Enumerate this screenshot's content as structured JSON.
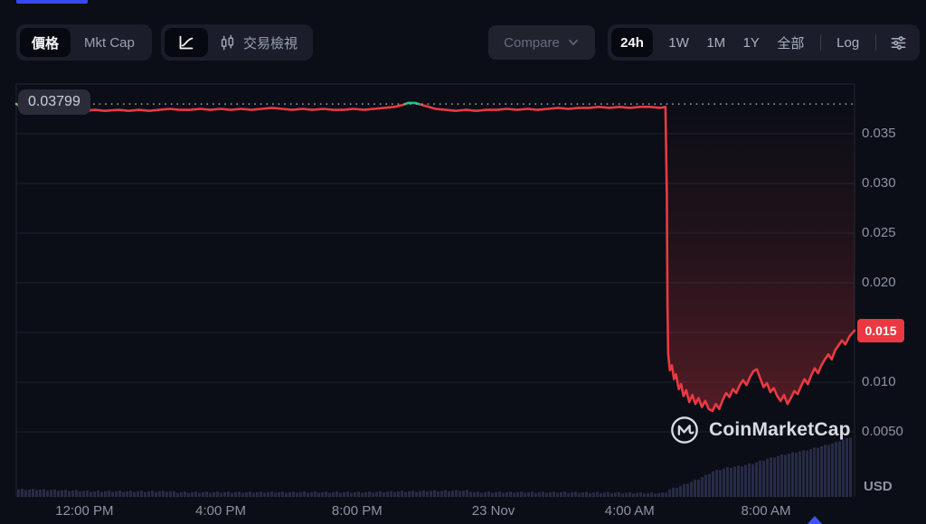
{
  "toolbar": {
    "metric_group": {
      "price_label": "價格",
      "mktcap_label": "Mkt Cap"
    },
    "view_group": {
      "trading_view_label": "交易檢視"
    },
    "compare_label": "Compare",
    "range_group": {
      "r24h": "24h",
      "r1w": "1W",
      "r1m": "1M",
      "r1y": "1Y",
      "all": "全部",
      "log": "Log"
    }
  },
  "chart": {
    "open_price_label": "0.03799",
    "last_price_label": "0.015",
    "currency_label": "USD",
    "watermark_text": "CoinMarketCap"
  },
  "chart_data": {
    "type": "line",
    "currency": "USD",
    "baseline_price": 0.03799,
    "last_price": 0.0152,
    "time_domain": [
      0,
      24.6
    ],
    "ylim": [
      -0.00155,
      0.04
    ],
    "grid": "horizontal-only",
    "y_ticks": [
      {
        "label": "0.035",
        "value": 0.035
      },
      {
        "label": "0.030",
        "value": 0.03
      },
      {
        "label": "0.025",
        "value": 0.025
      },
      {
        "label": "0.020",
        "value": 0.02
      },
      {
        "label": "0.015",
        "value": 0.015,
        "label_hidden": true
      },
      {
        "label": "0.010",
        "value": 0.01
      },
      {
        "label": "0.0050",
        "value": 0.005
      }
    ],
    "x_ticks": [
      {
        "label": "12:00 PM",
        "t": 2.0
      },
      {
        "label": "4:00 PM",
        "t": 6.0
      },
      {
        "label": "8:00 PM",
        "t": 10.0
      },
      {
        "label": "23 Nov",
        "t": 14.0
      },
      {
        "label": "4:00 AM",
        "t": 18.0
      },
      {
        "label": "8:00 AM",
        "t": 22.0
      }
    ],
    "series": [
      {
        "name": "price",
        "points": [
          [
            0.0,
            0.038
          ],
          [
            0.15,
            0.0376
          ],
          [
            0.4,
            0.0374
          ],
          [
            0.7,
            0.0375
          ],
          [
            0.9,
            0.0372
          ],
          [
            1.1,
            0.0374
          ],
          [
            1.4,
            0.0372
          ],
          [
            1.7,
            0.0374
          ],
          [
            2.0,
            0.0373
          ],
          [
            2.3,
            0.0374
          ],
          [
            2.6,
            0.0373
          ],
          [
            3.0,
            0.0374
          ],
          [
            3.3,
            0.0373
          ],
          [
            3.6,
            0.0374
          ],
          [
            3.9,
            0.0373
          ],
          [
            4.2,
            0.0374
          ],
          [
            4.5,
            0.0375
          ],
          [
            4.8,
            0.0374
          ],
          [
            5.1,
            0.0374
          ],
          [
            5.4,
            0.0375
          ],
          [
            5.7,
            0.0374
          ],
          [
            6.0,
            0.0375
          ],
          [
            6.3,
            0.0374
          ],
          [
            6.6,
            0.0375
          ],
          [
            6.9,
            0.0374
          ],
          [
            7.2,
            0.0375
          ],
          [
            7.5,
            0.0376
          ],
          [
            7.8,
            0.0375
          ],
          [
            8.1,
            0.0374
          ],
          [
            8.4,
            0.0375
          ],
          [
            8.7,
            0.0374
          ],
          [
            9.0,
            0.0375
          ],
          [
            9.3,
            0.0374
          ],
          [
            9.6,
            0.0374
          ],
          [
            9.9,
            0.0375
          ],
          [
            10.2,
            0.0374
          ],
          [
            10.5,
            0.0375
          ],
          [
            10.8,
            0.0376
          ],
          [
            11.1,
            0.0377
          ],
          [
            11.35,
            0.0379
          ],
          [
            11.5,
            0.0381
          ],
          [
            11.7,
            0.0381
          ],
          [
            11.9,
            0.0379
          ],
          [
            12.1,
            0.0377
          ],
          [
            12.3,
            0.0375
          ],
          [
            12.6,
            0.0374
          ],
          [
            12.9,
            0.0373
          ],
          [
            13.2,
            0.0374
          ],
          [
            13.5,
            0.0373
          ],
          [
            13.8,
            0.0374
          ],
          [
            14.1,
            0.0374
          ],
          [
            14.4,
            0.0375
          ],
          [
            14.7,
            0.0374
          ],
          [
            15.0,
            0.0375
          ],
          [
            15.3,
            0.0374
          ],
          [
            15.6,
            0.0375
          ],
          [
            15.9,
            0.0376
          ],
          [
            16.2,
            0.0375
          ],
          [
            16.5,
            0.0376
          ],
          [
            16.8,
            0.0376
          ],
          [
            17.1,
            0.0377
          ],
          [
            17.4,
            0.0376
          ],
          [
            17.7,
            0.0377
          ],
          [
            18.0,
            0.0376
          ],
          [
            18.3,
            0.0377
          ],
          [
            18.6,
            0.0377
          ],
          [
            18.9,
            0.0376
          ],
          [
            19.05,
            0.0377
          ],
          [
            19.09,
            0.029
          ],
          [
            19.11,
            0.018
          ],
          [
            19.13,
            0.0128
          ],
          [
            19.18,
            0.0112
          ],
          [
            19.24,
            0.0117
          ],
          [
            19.3,
            0.0103
          ],
          [
            19.36,
            0.0108
          ],
          [
            19.44,
            0.0093
          ],
          [
            19.51,
            0.0098
          ],
          [
            19.58,
            0.0086
          ],
          [
            19.66,
            0.0092
          ],
          [
            19.75,
            0.008
          ],
          [
            19.84,
            0.0087
          ],
          [
            19.93,
            0.0078
          ],
          [
            20.02,
            0.0084
          ],
          [
            20.12,
            0.0075
          ],
          [
            20.22,
            0.0081
          ],
          [
            20.32,
            0.0073
          ],
          [
            20.43,
            0.0071
          ],
          [
            20.53,
            0.0078
          ],
          [
            20.63,
            0.0073
          ],
          [
            20.73,
            0.0082
          ],
          [
            20.83,
            0.0089
          ],
          [
            20.93,
            0.0085
          ],
          [
            21.03,
            0.0093
          ],
          [
            21.13,
            0.0089
          ],
          [
            21.23,
            0.0097
          ],
          [
            21.33,
            0.0102
          ],
          [
            21.43,
            0.0097
          ],
          [
            21.53,
            0.0105
          ],
          [
            21.63,
            0.0111
          ],
          [
            21.73,
            0.0113
          ],
          [
            21.83,
            0.0104
          ],
          [
            21.93,
            0.0095
          ],
          [
            22.03,
            0.0099
          ],
          [
            22.13,
            0.009
          ],
          [
            22.23,
            0.0094
          ],
          [
            22.33,
            0.0086
          ],
          [
            22.43,
            0.0081
          ],
          [
            22.53,
            0.0087
          ],
          [
            22.63,
            0.0078
          ],
          [
            22.73,
            0.0084
          ],
          [
            22.83,
            0.0091
          ],
          [
            22.93,
            0.0088
          ],
          [
            23.03,
            0.0096
          ],
          [
            23.13,
            0.0103
          ],
          [
            23.23,
            0.0098
          ],
          [
            23.33,
            0.0107
          ],
          [
            23.43,
            0.0114
          ],
          [
            23.53,
            0.0109
          ],
          [
            23.63,
            0.0117
          ],
          [
            23.73,
            0.0123
          ],
          [
            23.83,
            0.0128
          ],
          [
            23.93,
            0.0123
          ],
          [
            24.03,
            0.0132
          ],
          [
            24.13,
            0.0137
          ],
          [
            24.23,
            0.0142
          ],
          [
            24.33,
            0.0138
          ],
          [
            24.45,
            0.0146
          ],
          [
            24.6,
            0.0152
          ]
        ]
      }
    ],
    "volume_profile": [
      [
        0,
        8
      ],
      [
        0.6,
        8
      ],
      [
        1.5,
        7
      ],
      [
        2.2,
        6
      ],
      [
        4.5,
        6
      ],
      [
        4.7,
        5
      ],
      [
        10.0,
        5
      ],
      [
        13.2,
        7
      ],
      [
        13.4,
        5
      ],
      [
        16.0,
        5
      ],
      [
        19.0,
        4
      ],
      [
        19.1,
        8
      ],
      [
        19.3,
        10
      ],
      [
        19.6,
        14
      ],
      [
        20.0,
        20
      ],
      [
        20.4,
        28
      ],
      [
        20.8,
        32
      ],
      [
        21.2,
        34
      ],
      [
        21.6,
        37
      ],
      [
        22.0,
        42
      ],
      [
        22.4,
        46
      ],
      [
        22.8,
        49
      ],
      [
        23.2,
        52
      ],
      [
        23.6,
        56
      ],
      [
        24.0,
        60
      ],
      [
        24.3,
        64
      ],
      [
        24.6,
        68
      ]
    ],
    "colors": {
      "line_down": "#ea3943",
      "line_up": "#16c784",
      "area_down": "#ea3943",
      "grid": "#1d2130",
      "border": "#222636",
      "volume": "#282b46",
      "baseline_dots": "#a6abb8",
      "badge_bg": "#ea3943",
      "accent_blue": "#3b55f7"
    }
  }
}
